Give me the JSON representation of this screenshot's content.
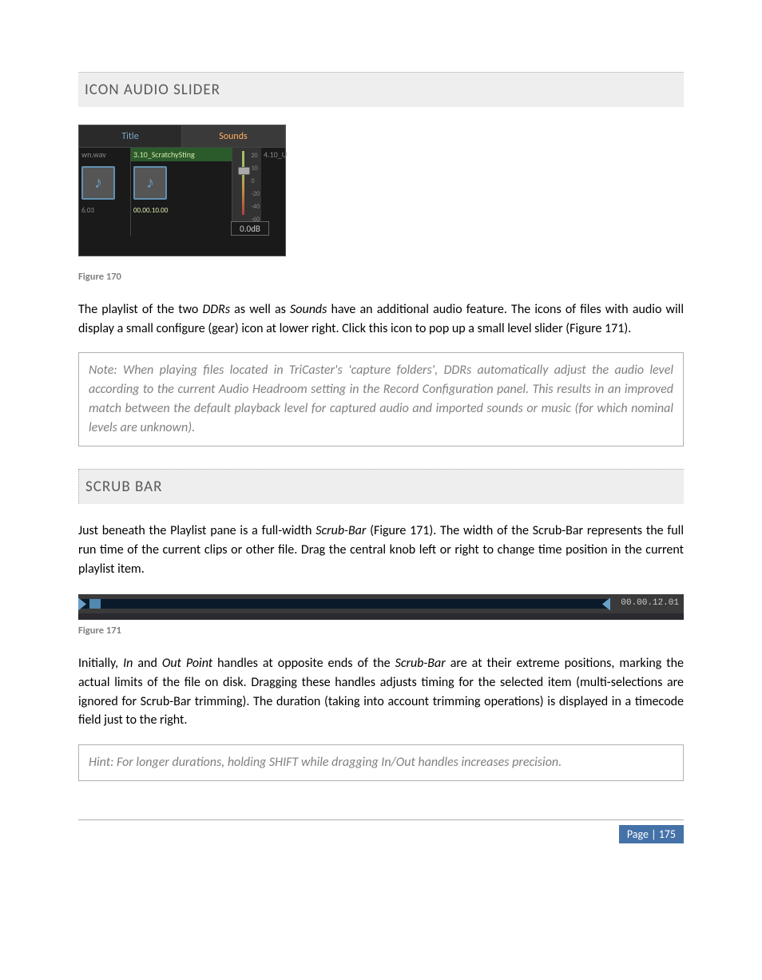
{
  "heading1": "ICON AUDIO SLIDER",
  "screenshot1": {
    "tab_title": "Title",
    "tab_sounds": "Sounds",
    "file_left": "wn.wav",
    "file_mid": "3.10_ScratchySting",
    "file_right": "4.10_U",
    "tc_left": "6.03",
    "tc_mid": "00.00.10.00",
    "scale": [
      "20",
      "10",
      "0",
      "-20",
      "-40",
      "-60"
    ],
    "db_readout": "0.0dB"
  },
  "figcap1": "Figure 170",
  "para1_a": "The playlist of the two ",
  "para1_ddr": "DDRs",
  "para1_b": " as well as ",
  "para1_sounds": "Sounds",
  "para1_c": " have an additional audio feature.  The icons of files with audio will display a small configure (gear) icon at lower right.  Click this icon to pop up a small level slider (Figure 171).",
  "note1": "Note: When playing files located in TriCaster's 'capture folders', DDRs automatically adjust the audio level according to the current Audio Headroom setting in the Record Configuration panel. This results in an improved match between the default playback level for captured audio and imported sounds or music (for which nominal levels are unknown).",
  "heading2": "SCRUB BAR",
  "para2_a": "Just beneath the Playlist pane is a full-width ",
  "para2_scrub": "Scrub-Bar",
  "para2_b": " (Figure 171).  The width of the Scrub-Bar represents the full run time of the current clips or other file.   Drag the central knob left or right to change time position in the current playlist item.",
  "scrub_time": "00.00.12.01",
  "figcap2": "Figure 171",
  "para3_a": "Initially, ",
  "para3_in": "In",
  "para3_b": " and ",
  "para3_out": "Out Point",
  "para3_c": " handles at opposite ends of the ",
  "para3_scrub": "Scrub-Bar",
  "para3_d": " are at their extreme positions, marking the actual limits of the file on disk.  Dragging these handles adjusts timing for the selected item (multi-selections are ignored for Scrub-Bar trimming).  The duration (taking into account trimming operations) is displayed in a timecode field just to the right.",
  "hint": "Hint: For longer durations, holding SHIFT while dragging In/Out handles increases precision.",
  "page_label": "Page | 175"
}
